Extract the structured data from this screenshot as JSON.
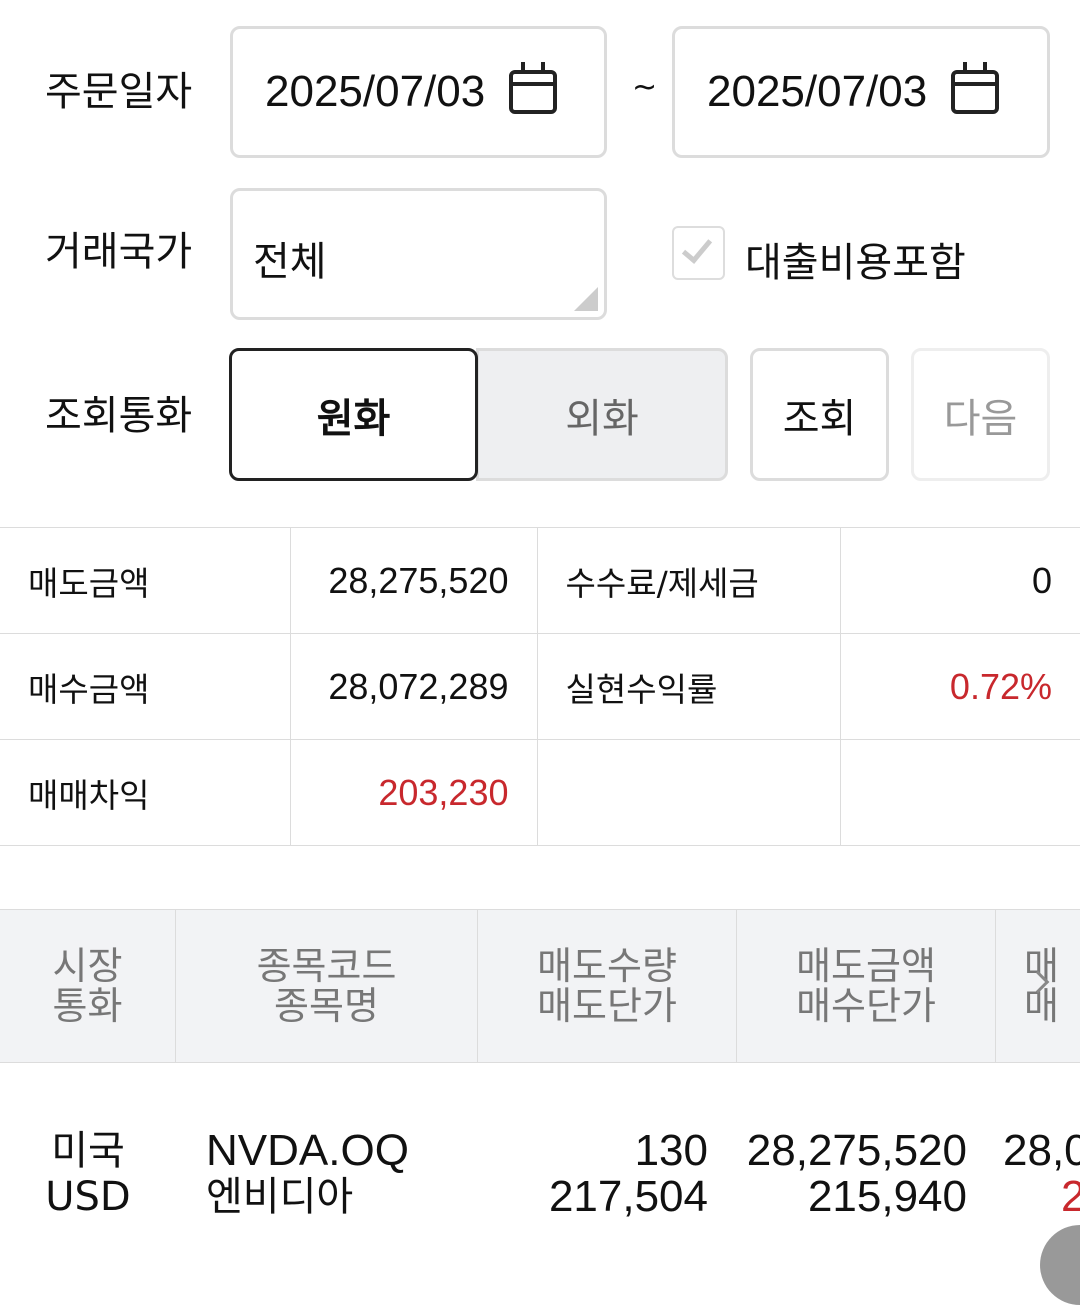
{
  "filters": {
    "order_date_label": "주문일자",
    "start_date": "2025/07/03",
    "separator": "~",
    "end_date": "2025/07/03",
    "country_label": "거래국가",
    "country_value": "전체",
    "loan_cost_label": "대출비용포함",
    "loan_cost_checked": true,
    "currency_label": "조회통화",
    "currency_options": [
      "원화",
      "외화"
    ],
    "currency_selected": "원화",
    "search_button": "조회",
    "next_button": "다음"
  },
  "summary": {
    "sell_amount_label": "매도금액",
    "sell_amount": "28,275,520",
    "fee_tax_label": "수수료/제세금",
    "fee_tax": "0",
    "buy_amount_label": "매수금액",
    "buy_amount": "28,072,289",
    "return_rate_label": "실현수익률",
    "return_rate": "0.72%",
    "profit_label": "매매차익",
    "profit": "203,230"
  },
  "grid": {
    "headers": [
      [
        "시장",
        "통화"
      ],
      [
        "종목코드",
        "종목명"
      ],
      [
        "매도수량",
        "매도단가"
      ],
      [
        "매도금액",
        "매수단가"
      ],
      [
        "매",
        "매"
      ]
    ],
    "rows": [
      {
        "market": "미국",
        "currency": "USD",
        "code": "NVDA.OQ",
        "name": "엔비디아",
        "sell_qty": "130",
        "sell_price": "217,504",
        "sell_amount": "28,275,520",
        "buy_price": "215,940",
        "col5_top": "28,0",
        "col5_bottom": "2"
      }
    ]
  },
  "colors": {
    "positive": "#c8282d",
    "header_bg": "#f2f3f5",
    "border": "#dcdcdc"
  }
}
